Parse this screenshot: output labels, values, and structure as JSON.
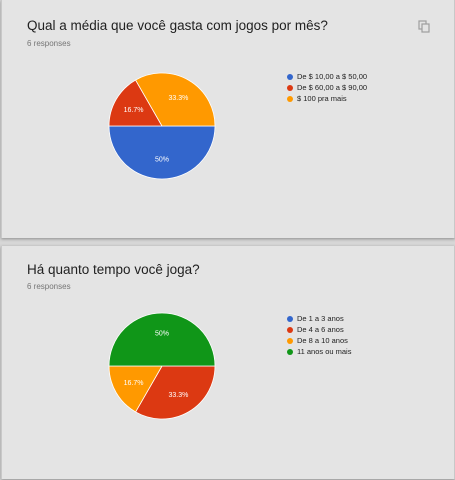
{
  "colors": {
    "blue": "#3366cc",
    "red": "#dc3912",
    "orange": "#ff9900",
    "green": "#109618",
    "accent": "#673ab7"
  },
  "questions": [
    {
      "title": "Qual a média que você gasta com jogos por mês?",
      "responses": "6 responses",
      "copy_icon": "copy-icon",
      "legend": [
        {
          "label": "De $ 10,00 a $ 50,00",
          "color": "#3366cc"
        },
        {
          "label": "De $ 60,00 a $ 90,00",
          "color": "#dc3912"
        },
        {
          "label": "$ 100 pra mais",
          "color": "#ff9900"
        }
      ]
    },
    {
      "title": "Há quanto tempo você joga?",
      "responses": "6 responses",
      "legend": [
        {
          "label": "De 1 a 3 anos",
          "color": "#3366cc"
        },
        {
          "label": "De 4 a 6 anos",
          "color": "#dc3912"
        },
        {
          "label": "De 8 a 10 anos",
          "color": "#ff9900"
        },
        {
          "label": "11 anos ou mais",
          "color": "#109618"
        }
      ]
    }
  ],
  "chart_data": [
    {
      "type": "pie",
      "categories": [
        "De $ 10,00 a $ 50,00",
        "De $ 60,00 a $ 90,00",
        "$ 100 pra mais"
      ],
      "values": [
        50,
        16.7,
        33.3
      ],
      "labels": [
        "50%",
        "16.7%",
        "33.3%"
      ],
      "colors": [
        "#3366cc",
        "#dc3912",
        "#ff9900"
      ],
      "legend": "right"
    },
    {
      "type": "pie",
      "categories": [
        "De 1 a 3 anos",
        "De 4 a 6 anos",
        "De 8 a 10 anos",
        "11 anos ou mais"
      ],
      "values": [
        0,
        33.3,
        16.7,
        50
      ],
      "labels": [
        "",
        "33.3%",
        "16.7%",
        "50%"
      ],
      "colors": [
        "#3366cc",
        "#dc3912",
        "#ff9900",
        "#109618"
      ],
      "legend": "right"
    }
  ]
}
